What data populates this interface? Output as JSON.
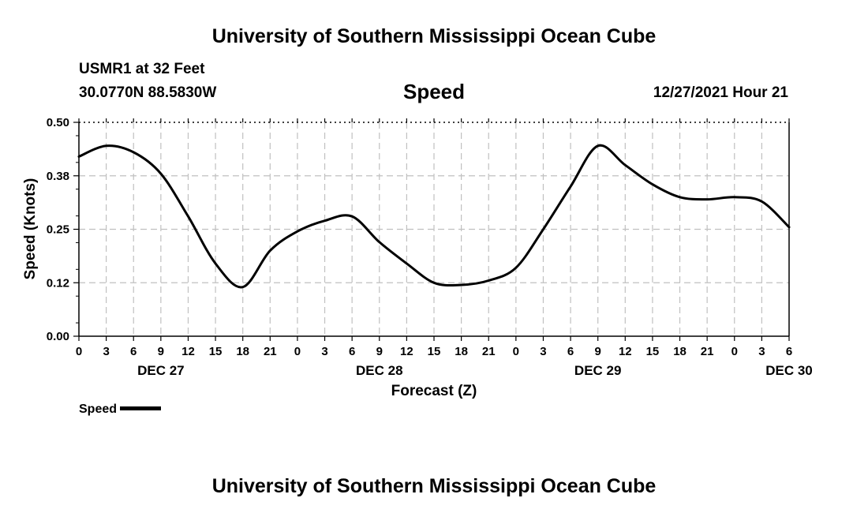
{
  "header": {
    "title_top": "University of Southern Mississippi Ocean Cube",
    "title_bottom": "University of Southern Mississippi Ocean Cube",
    "station": "USMR1 at 32 Feet",
    "coordinates": "30.0770N  88.5830W",
    "chart_name": "Speed",
    "timestamp": "12/27/2021 Hour 21"
  },
  "legend": {
    "label": "Speed"
  },
  "colors": {
    "line": "#000000",
    "grid": "#c0c0c0",
    "background": "#ffffff"
  },
  "chart_data": {
    "type": "line",
    "title": "Speed",
    "xlabel": "Forecast (Z)",
    "ylabel": "Speed (Knots)",
    "ylim": [
      0.0,
      0.5
    ],
    "yticks": [
      "0.00",
      "0.12",
      "0.25",
      "0.38",
      "0.50"
    ],
    "x_start": "12/27/2021 00Z",
    "x_end": "12/30/2021 06Z",
    "x_step_hours": 3,
    "xtick_labels": [
      "0",
      "3",
      "6",
      "9",
      "12",
      "15",
      "18",
      "21",
      "0",
      "3",
      "6",
      "9",
      "12",
      "15",
      "18",
      "21",
      "0",
      "3",
      "6",
      "9",
      "12",
      "15",
      "18",
      "21",
      "0",
      "3",
      "6"
    ],
    "date_labels": [
      {
        "label": "DEC 27",
        "hour": 9
      },
      {
        "label": "DEC 28",
        "hour": 33
      },
      {
        "label": "DEC 29",
        "hour": 57
      },
      {
        "label": "DEC 30",
        "hour": 78
      }
    ],
    "grid": true,
    "legend_position": "bottom-left",
    "series": [
      {
        "name": "Speed",
        "x_hours": [
          0,
          3,
          6,
          9,
          12,
          15,
          18,
          21,
          24,
          27,
          30,
          33,
          36,
          39,
          42,
          45,
          48,
          51,
          54,
          57,
          60,
          63,
          66,
          69,
          72,
          75,
          78
        ],
        "values": [
          0.42,
          0.445,
          0.43,
          0.38,
          0.28,
          0.17,
          0.115,
          0.2,
          0.245,
          0.27,
          0.28,
          0.22,
          0.17,
          0.125,
          0.12,
          0.13,
          0.16,
          0.25,
          0.35,
          0.445,
          0.4,
          0.355,
          0.325,
          0.32,
          0.325,
          0.315,
          0.255
        ]
      }
    ]
  }
}
